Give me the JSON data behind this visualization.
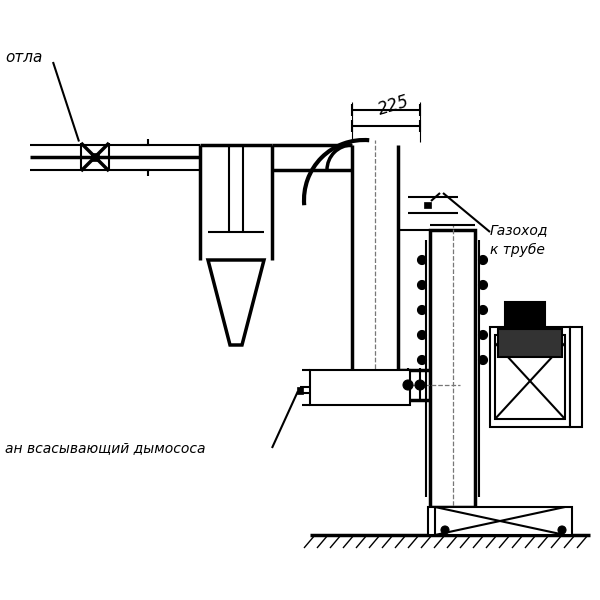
{
  "bg_color": "#ffffff",
  "lc": "#000000",
  "lw": 1.5,
  "tlw": 2.5,
  "label_otla": "отла",
  "label_gazokhod": "Газоход\nк трубе",
  "label_vsan": "ан всасывающий дымососа",
  "dim_225": "225",
  "font_size": 9
}
